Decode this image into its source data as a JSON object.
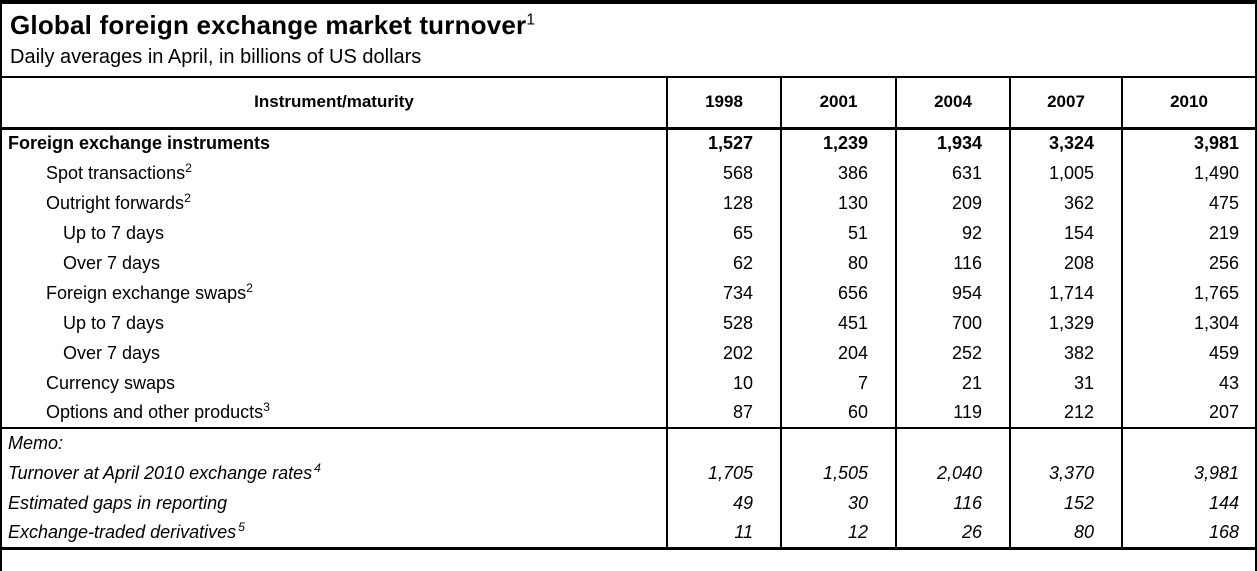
{
  "title": {
    "text": "Global foreign exchange market turnover",
    "footnote_marker": "1"
  },
  "subtitle": "Daily averages in April, in billions of US dollars",
  "colors": {
    "background": "#ffffff",
    "text": "#000000",
    "border": "#000000"
  },
  "table": {
    "header": {
      "label": "Instrument/maturity",
      "years": [
        "1998",
        "2001",
        "2004",
        "2007",
        "2010"
      ]
    },
    "rows": [
      {
        "label": "Foreign exchange instruments",
        "sup": "",
        "indent": 0,
        "bold": true,
        "values": [
          "1,527",
          "1,239",
          "1,934",
          "3,324",
          "3,981"
        ]
      },
      {
        "label": "Spot transactions",
        "sup": "2",
        "indent": 1,
        "bold": false,
        "values": [
          "568",
          "386",
          "631",
          "1,005",
          "1,490"
        ]
      },
      {
        "label": "Outright forwards",
        "sup": "2",
        "indent": 1,
        "bold": false,
        "values": [
          "128",
          "130",
          "209",
          "362",
          "475"
        ]
      },
      {
        "label": "Up to 7 days",
        "sup": "",
        "indent": 2,
        "bold": false,
        "values": [
          "65",
          "51",
          "92",
          "154",
          "219"
        ]
      },
      {
        "label": "Over 7 days",
        "sup": "",
        "indent": 2,
        "bold": false,
        "values": [
          "62",
          "80",
          "116",
          "208",
          "256"
        ]
      },
      {
        "label": "Foreign exchange swaps",
        "sup": "2",
        "indent": 1,
        "bold": false,
        "values": [
          "734",
          "656",
          "954",
          "1,714",
          "1,765"
        ]
      },
      {
        "label": "Up to 7 days",
        "sup": "",
        "indent": 2,
        "bold": false,
        "values": [
          "528",
          "451",
          "700",
          "1,329",
          "1,304"
        ]
      },
      {
        "label": "Over 7 days",
        "sup": "",
        "indent": 2,
        "bold": false,
        "values": [
          "202",
          "204",
          "252",
          "382",
          "459"
        ]
      },
      {
        "label": "Currency swaps",
        "sup": "",
        "indent": 1,
        "bold": false,
        "values": [
          "10",
          "7",
          "21",
          "31",
          "43"
        ]
      },
      {
        "label": "Options and other products",
        "sup": "3",
        "indent": 1,
        "bold": false,
        "values": [
          "87",
          "60",
          "119",
          "212",
          "207"
        ]
      }
    ],
    "memo": {
      "label": "Memo:",
      "rows": [
        {
          "label": "Turnover at April 2010 exchange rates",
          "sup": "4",
          "values": [
            "1,705",
            "1,505",
            "2,040",
            "3,370",
            "3,981"
          ]
        },
        {
          "label": "Estimated gaps in reporting",
          "sup": "",
          "values": [
            "49",
            "30",
            "116",
            "152",
            "144"
          ]
        },
        {
          "label": "Exchange-traded derivatives",
          "sup": "5",
          "values": [
            "11",
            "12",
            "26",
            "80",
            "168"
          ]
        }
      ]
    }
  }
}
